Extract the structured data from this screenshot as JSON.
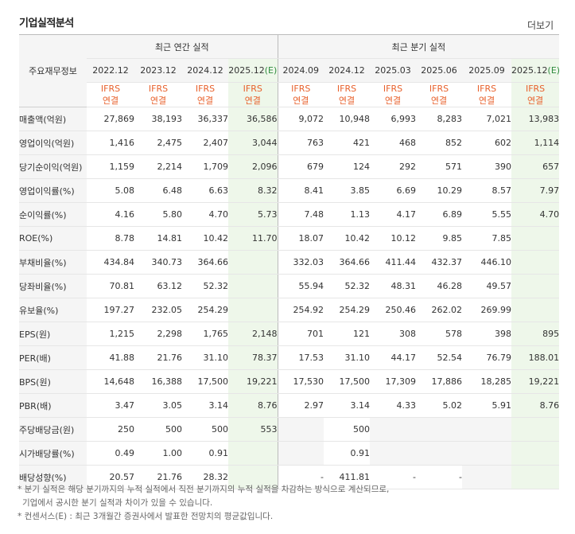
{
  "header": {
    "title": "기업실적분석",
    "more": "더보기"
  },
  "table": {
    "corner_label": "주요재무정보",
    "groups": [
      "최근 연간 실적",
      "최근 분기 실적"
    ],
    "periods": [
      {
        "label": "2022.12",
        "est": false
      },
      {
        "label": "2023.12",
        "est": false
      },
      {
        "label": "2024.12",
        "est": false
      },
      {
        "label": "2025.12",
        "est_tag": "(E)",
        "est": true
      },
      {
        "label": "2024.09",
        "est": false
      },
      {
        "label": "2024.12",
        "est": false
      },
      {
        "label": "2025.03",
        "est": false
      },
      {
        "label": "2025.06",
        "est": false
      },
      {
        "label": "2025.09",
        "est": false
      },
      {
        "label": "2025.12",
        "est_tag": "(E)",
        "est": true
      }
    ],
    "ifrs_line1": "IFRS",
    "ifrs_line2": "연결",
    "rows": [
      {
        "label": "매출액(억원)",
        "values": [
          "27,869",
          "38,193",
          "36,337",
          "36,586",
          "9,072",
          "10,948",
          "6,993",
          "8,283",
          "7,021",
          "13,983"
        ]
      },
      {
        "label": "영업이익(억원)",
        "values": [
          "1,416",
          "2,475",
          "2,407",
          "3,044",
          "763",
          "421",
          "468",
          "852",
          "602",
          "1,114"
        ]
      },
      {
        "label": "당기순이익(억원)",
        "values": [
          "1,159",
          "2,214",
          "1,709",
          "2,096",
          "679",
          "124",
          "292",
          "571",
          "390",
          "657"
        ]
      },
      {
        "label": "영업이익률(%)",
        "values": [
          "5.08",
          "6.48",
          "6.63",
          "8.32",
          "8.41",
          "3.85",
          "6.69",
          "10.29",
          "8.57",
          "7.97"
        ]
      },
      {
        "label": "순이익률(%)",
        "values": [
          "4.16",
          "5.80",
          "4.70",
          "5.73",
          "7.48",
          "1.13",
          "4.17",
          "6.89",
          "5.55",
          "4.70"
        ]
      },
      {
        "label": "ROE(%)",
        "values": [
          "8.78",
          "14.81",
          "10.42",
          "11.70",
          "18.07",
          "10.42",
          "10.12",
          "9.85",
          "7.85",
          ""
        ]
      },
      {
        "label": "부채비율(%)",
        "values": [
          "434.84",
          "340.73",
          "364.66",
          "",
          "332.03",
          "364.66",
          "411.44",
          "432.37",
          "446.10",
          ""
        ]
      },
      {
        "label": "당좌비율(%)",
        "values": [
          "70.81",
          "63.12",
          "52.32",
          "",
          "55.94",
          "52.32",
          "48.31",
          "46.28",
          "49.57",
          ""
        ]
      },
      {
        "label": "유보율(%)",
        "values": [
          "197.27",
          "232.05",
          "254.29",
          "",
          "254.92",
          "254.29",
          "250.46",
          "262.02",
          "269.99",
          ""
        ]
      },
      {
        "label": "EPS(원)",
        "values": [
          "1,215",
          "2,298",
          "1,765",
          "2,148",
          "701",
          "121",
          "308",
          "578",
          "398",
          "895"
        ]
      },
      {
        "label": "PER(배)",
        "values": [
          "41.88",
          "21.76",
          "31.10",
          "78.37",
          "17.53",
          "31.10",
          "44.17",
          "52.54",
          "76.79",
          "188.01"
        ]
      },
      {
        "label": "BPS(원)",
        "values": [
          "14,648",
          "16,388",
          "17,500",
          "19,221",
          "17,530",
          "17,500",
          "17,309",
          "17,886",
          "18,285",
          "19,221"
        ]
      },
      {
        "label": "PBR(배)",
        "values": [
          "3.47",
          "3.05",
          "3.14",
          "8.76",
          "2.97",
          "3.14",
          "4.33",
          "5.02",
          "5.91",
          "8.76"
        ]
      },
      {
        "label": "주당배당금(원)",
        "values": [
          "250",
          "500",
          "500",
          "553",
          "",
          "500",
          "",
          "",
          "",
          ""
        ]
      },
      {
        "label": "시가배당률(%)",
        "values": [
          "0.49",
          "1.00",
          "0.91",
          "",
          "",
          "0.91",
          "",
          "",
          "",
          ""
        ]
      },
      {
        "label": "배당성향(%)",
        "values": [
          "20.57",
          "21.76",
          "28.32",
          "",
          "-",
          "411.81",
          "-",
          "-",
          "",
          ""
        ]
      }
    ]
  },
  "notes": {
    "line1": "* 분기 실적은 해당 분기까지의 누적 실적에서 직전 분기까지의 누적 실적을 차감하는 방식으로 계산되므로,",
    "line2": "기업에서 공시한 분기 실적과 차이가 있을 수 있습니다.",
    "line3": "* 컨센서스(E) : 최근 3개월간 증권사에서 발표한 전망치의 평균값입니다."
  }
}
